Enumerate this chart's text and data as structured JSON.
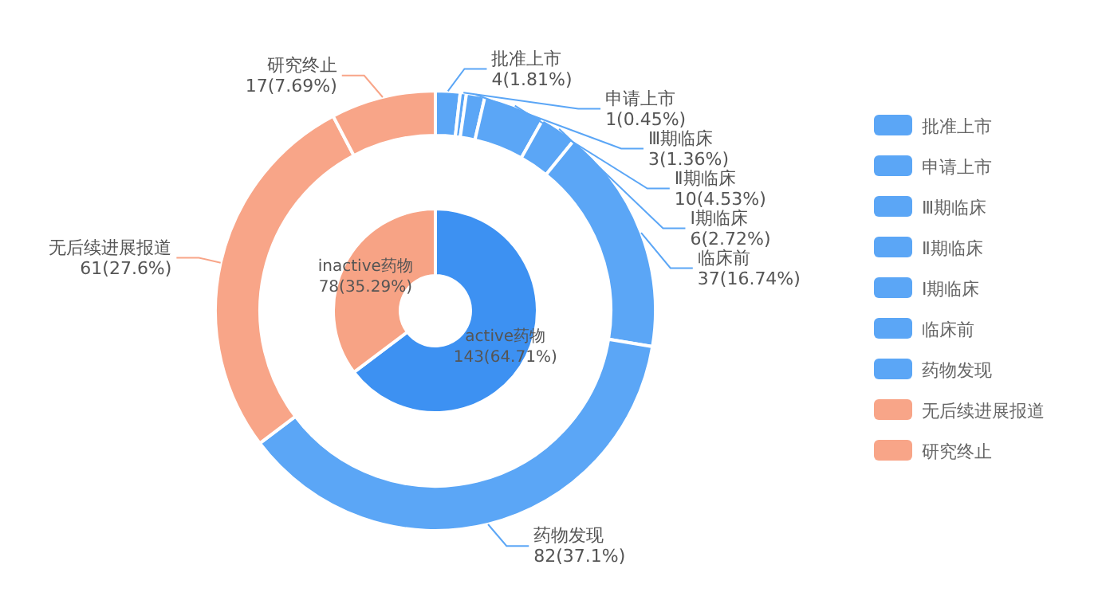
{
  "chart_data": [
    {
      "type": "donut",
      "categories": [
        "active药物",
        "inactive药物"
      ],
      "values": [
        143,
        78
      ],
      "colors": [
        "#3d91f2",
        "#f7a385"
      ],
      "value_labels": [
        "143(64.71%)",
        "78(35.29%)"
      ]
    },
    {
      "type": "donut",
      "categories": [
        "批准上市",
        "申请上市",
        "Ⅲ期临床",
        "Ⅱ期临床",
        "Ⅰ期临床",
        "临床前",
        "药物发现",
        "无后续进展报道",
        "研究终止"
      ],
      "values": [
        4,
        1,
        3,
        10,
        6,
        37,
        82,
        61,
        17
      ],
      "colors": [
        "#5ba6f6",
        "#5ba6f6",
        "#5ba6f6",
        "#5ba6f6",
        "#5ba6f6",
        "#5ba6f6",
        "#5ba6f6",
        "#f8a588",
        "#f8a588"
      ],
      "value_labels": [
        "4(1.81%)",
        "1(0.45%)",
        "3(1.36%)",
        "10(4.53%)",
        "6(2.72%)",
        "37(16.74%)",
        "82(37.1%)",
        "61(27.6%)",
        "17(7.69%)"
      ],
      "legend": "right"
    }
  ]
}
